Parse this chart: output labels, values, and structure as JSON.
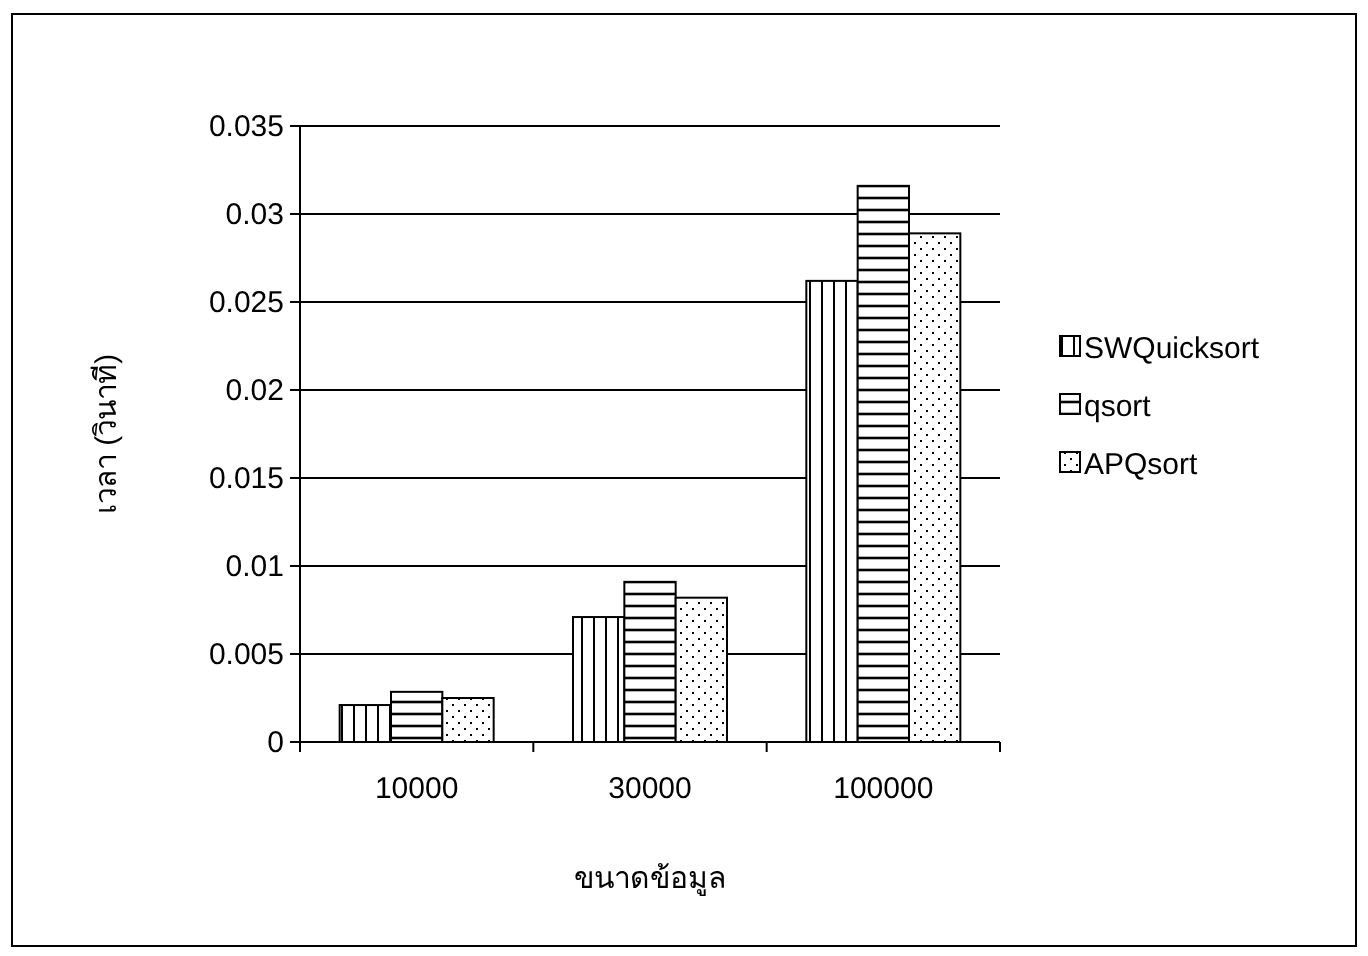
{
  "chart_data": {
    "type": "bar",
    "xlabel": "ขนาดข้อมูล",
    "ylabel": "เวลา  (วินาที)",
    "categories": [
      "10000",
      "30000",
      "100000"
    ],
    "series": [
      {
        "name": "SWQuicksort",
        "color": "#000000",
        "values": [
          0.0021,
          0.0071,
          0.0262
        ]
      },
      {
        "name": "qsort",
        "color": "#000000",
        "values": [
          0.00285,
          0.0091,
          0.0316
        ]
      },
      {
        "name": "APQsort",
        "color": "#000000",
        "values": [
          0.0025,
          0.0082,
          0.0289
        ]
      }
    ],
    "ylim": [
      0,
      0.035
    ],
    "yticks": [
      0,
      0.005,
      0.01,
      0.015,
      0.02,
      0.025,
      0.03,
      0.035
    ],
    "grid": "y",
    "legend": "right"
  }
}
